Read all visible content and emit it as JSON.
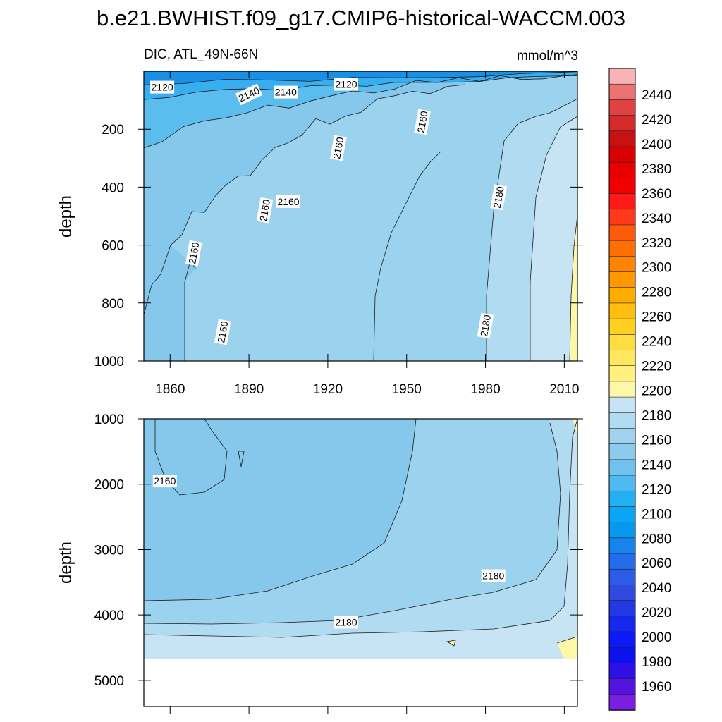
{
  "figure": {
    "title": "b.e21.BWHIST.f09_g17.CMIP6-historical-WACCM.003"
  },
  "chart_data": [
    {
      "type": "contour",
      "panel": "upper",
      "left_string": "DIC, ATL_49N-66N",
      "right_string": "mmol/m^3",
      "ylabel": "depth",
      "y_reversed": true,
      "xlim": [
        1850,
        2015
      ],
      "ylim": [
        0,
        1000
      ],
      "x_ticks": [
        1860,
        1890,
        1920,
        1950,
        1980,
        2010
      ],
      "y_ticks": [
        200,
        400,
        600,
        800,
        1000
      ],
      "contour_labels": [
        {
          "x": 1857,
          "y": 55,
          "text": "2120"
        },
        {
          "x": 1880,
          "y": 900,
          "text": "2160"
        },
        {
          "x": 1890,
          "y": 80,
          "text": "2140"
        },
        {
          "x": 1896,
          "y": 480,
          "text": "2160"
        },
        {
          "x": 1904,
          "y": 72,
          "text": "2140"
        },
        {
          "x": 1905,
          "y": 450,
          "text": "2160"
        },
        {
          "x": 1927,
          "y": 45,
          "text": "2120"
        },
        {
          "x": 1924,
          "y": 265,
          "text": "2160"
        },
        {
          "x": 1956,
          "y": 175,
          "text": "2160"
        },
        {
          "x": 1869,
          "y": 628,
          "text": "2160"
        },
        {
          "x": 1985,
          "y": 435,
          "text": "2180"
        },
        {
          "x": 1980,
          "y": 878,
          "text": "2180"
        }
      ]
    },
    {
      "type": "contour",
      "panel": "lower",
      "ylabel": "depth",
      "y_reversed": true,
      "xlim": [
        1850,
        2015
      ],
      "ylim": [
        1000,
        5400
      ],
      "y_ticks": [
        1000,
        2000,
        3000,
        4000,
        5000
      ],
      "contour_labels": [
        {
          "x": 1858,
          "y": 1950,
          "text": "2160"
        },
        {
          "x": 1927,
          "y": 4110,
          "text": "2180"
        },
        {
          "x": 1983,
          "y": 3400,
          "text": "2180"
        }
      ]
    }
  ],
  "colorbar": {
    "labels": [
      "2440",
      "2420",
      "2400",
      "2380",
      "2360",
      "2340",
      "2320",
      "2300",
      "2280",
      "2260",
      "2240",
      "2220",
      "2200",
      "2180",
      "2160",
      "2140",
      "2120",
      "2100",
      "2080",
      "2060",
      "2040",
      "2020",
      "2000",
      "1980",
      "1960"
    ],
    "colors_top_to_bottom": [
      "#f8b4b4",
      "#ec7272",
      "#e04242",
      "#d42a2a",
      "#c81212",
      "#d80000",
      "#e80000",
      "#f20000",
      "#ff1a1a",
      "#ff3a1a",
      "#ff5a0c",
      "#ff7000",
      "#ff8400",
      "#ff9800",
      "#ffac00",
      "#ffbe10",
      "#ffd020",
      "#ffdd40",
      "#ffe860",
      "#fff080",
      "#fff7a8",
      "#c6e4f4",
      "#b0dbf0",
      "#9ed2ee",
      "#8acbee",
      "#6ec2ec",
      "#4ebaf0",
      "#22b0f2",
      "#0aa6f4",
      "#0898ee",
      "#1684ec",
      "#226eea",
      "#2a5ce6",
      "#304ae0",
      "#2238e0",
      "#1428ee",
      "#0e1af6",
      "#0c12ee",
      "#2e10e4",
      "#5414e0",
      "#7a1ee0"
    ]
  },
  "colors": {
    "fill_2120": "#37aef0",
    "fill_2140": "#5bbcee",
    "fill_2160": "#85c8ec",
    "fill_2170": "#9bd2ee",
    "fill_2180": "#b0dbf0",
    "fill_2190": "#c6e4f4",
    "fill_2200": "#fff7a8",
    "surface": "#1a8fe6",
    "line": "#1a1a1a"
  }
}
